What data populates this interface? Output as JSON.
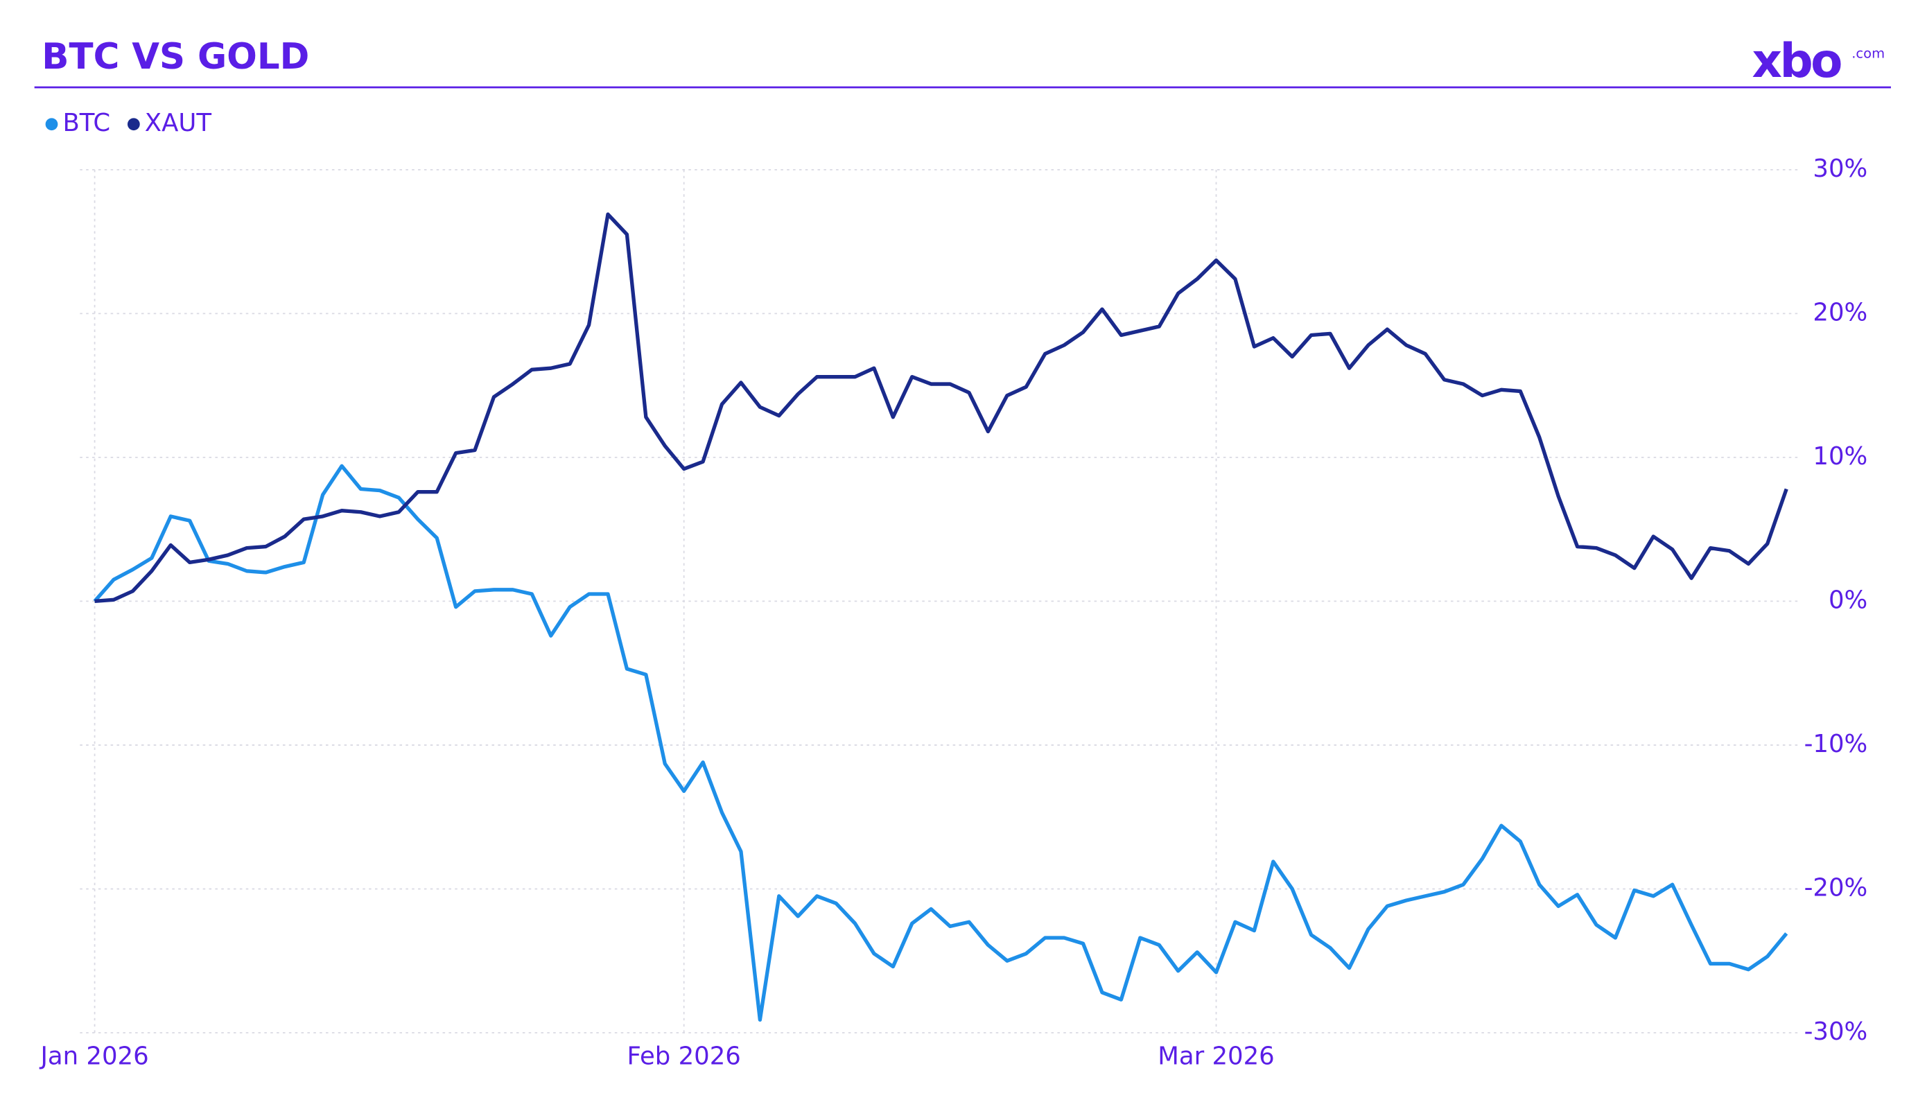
{
  "brand": {
    "name": "xbo",
    "domain": ".com"
  },
  "chart_data": {
    "type": "line",
    "title": "BTC VS GOLD",
    "x": [
      0,
      1,
      2,
      3,
      4,
      5,
      6,
      7,
      8,
      9,
      10,
      11,
      12,
      13,
      14,
      15,
      16,
      17,
      18,
      19,
      20,
      21,
      22,
      23,
      24,
      25,
      26,
      27,
      28,
      29,
      30,
      31,
      32,
      33,
      34,
      35,
      36,
      37,
      38,
      39,
      40,
      41,
      42,
      43,
      44,
      45,
      46,
      47,
      48,
      49,
      50,
      51,
      52,
      53,
      54,
      55,
      56,
      57,
      58,
      59,
      60,
      61,
      62,
      63,
      64,
      65,
      66,
      67,
      68,
      69,
      70,
      71,
      72,
      73,
      74,
      75,
      76,
      77,
      78,
      79,
      80,
      81,
      82,
      83,
      84,
      85,
      86,
      87,
      88,
      89
    ],
    "xlim": [
      0,
      89
    ],
    "xticks": [
      {
        "value": 0,
        "label": "Jan 2026"
      },
      {
        "value": 31,
        "label": "Feb 2026"
      },
      {
        "value": 59,
        "label": "Mar 2026"
      }
    ],
    "ylim": [
      -30,
      30
    ],
    "yticks": [
      {
        "value": 30,
        "label": "30%"
      },
      {
        "value": 20,
        "label": "20%"
      },
      {
        "value": 10,
        "label": "10%"
      },
      {
        "value": 0,
        "label": "0%"
      },
      {
        "value": -10,
        "label": "-10%"
      },
      {
        "value": -20,
        "label": "-20%"
      },
      {
        "value": -30,
        "label": "-30%"
      }
    ],
    "grid": true,
    "legend": "top-left",
    "series": [
      {
        "name": "BTC",
        "color": "#1e8fe8",
        "values": [
          0,
          1.5,
          2.2,
          3.0,
          5.9,
          5.6,
          2.8,
          2.6,
          2.1,
          2.0,
          2.4,
          2.7,
          7.4,
          9.4,
          7.8,
          7.7,
          7.2,
          5.7,
          4.4,
          -0.4,
          0.7,
          0.8,
          0.8,
          0.5,
          -2.4,
          -0.4,
          0.5,
          0.5,
          -4.7,
          -5.1,
          -11.3,
          -13.2,
          -11.2,
          -14.7,
          -17.4,
          -29.1,
          -20.5,
          -21.9,
          -20.5,
          -21.0,
          -22.4,
          -24.5,
          -25.4,
          -22.4,
          -21.4,
          -22.6,
          -22.3,
          -23.9,
          -25.0,
          -24.5,
          -23.4,
          -23.4,
          -23.8,
          -27.2,
          -27.7,
          -23.4,
          -23.9,
          -25.7,
          -24.4,
          -25.8,
          -22.3,
          -22.9,
          -18.1,
          -20.0,
          -23.2,
          -24.1,
          -25.5,
          -22.8,
          -21.2,
          -20.8,
          -20.5,
          -20.2,
          -19.7,
          -17.9,
          -15.6,
          -16.7,
          -19.7,
          -21.2,
          -20.4,
          -22.5,
          -23.4,
          -20.1,
          -20.5,
          -19.7,
          -22.5,
          -25.2,
          -25.2,
          -25.6,
          -24.7,
          -23.1
        ]
      },
      {
        "name": "XAUT",
        "color": "#1a2a8c",
        "values": [
          0,
          0.1,
          0.7,
          2.1,
          3.9,
          2.7,
          2.9,
          3.2,
          3.7,
          3.8,
          4.5,
          5.7,
          5.9,
          6.3,
          6.2,
          5.9,
          6.2,
          7.6,
          7.6,
          10.3,
          10.5,
          14.2,
          15.1,
          16.1,
          16.2,
          16.5,
          19.2,
          26.9,
          25.5,
          12.8,
          10.8,
          9.2,
          9.7,
          13.7,
          15.2,
          13.5,
          12.9,
          14.4,
          15.6,
          15.6,
          15.6,
          16.2,
          12.8,
          15.6,
          15.1,
          15.1,
          14.5,
          11.8,
          14.3,
          14.9,
          17.2,
          17.8,
          18.7,
          20.3,
          18.5,
          18.8,
          19.1,
          21.4,
          22.4,
          23.7,
          22.4,
          17.7,
          18.3,
          17.0,
          18.5,
          18.6,
          16.2,
          17.8,
          18.9,
          17.8,
          17.2,
          15.4,
          15.1,
          14.3,
          14.7,
          14.6,
          11.4,
          7.3,
          3.8,
          3.7,
          3.2,
          2.3,
          4.5,
          3.6,
          1.6,
          3.7,
          3.5,
          2.6,
          4.0,
          7.8
        ]
      }
    ]
  }
}
